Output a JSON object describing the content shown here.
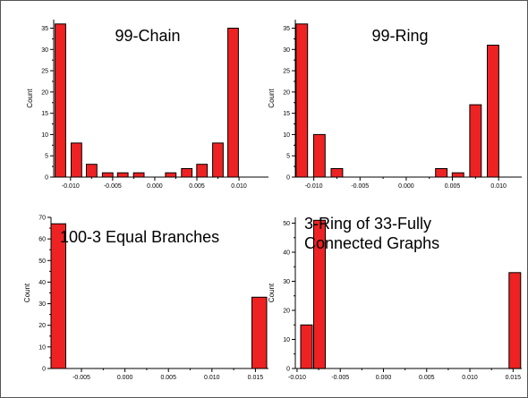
{
  "chart_data": [
    {
      "type": "bar",
      "title": "99-Chain",
      "ylabel": "Count",
      "xlim": [
        -0.012,
        0.0135
      ],
      "ylim": [
        0,
        37
      ],
      "xticks": [
        -0.01,
        -0.005,
        0.0,
        0.005,
        0.01
      ],
      "xtick_labels": [
        "-0.010",
        "-0.005",
        "0.000",
        "0.005",
        "0.010"
      ],
      "yticks": [
        0,
        5,
        10,
        15,
        20,
        25,
        30,
        35
      ],
      "ytick_labels": [
        "0",
        "5",
        "10",
        "15",
        "20",
        "25",
        "30",
        "35"
      ],
      "bar_width": 0.00125,
      "bars": [
        {
          "x": -0.0112,
          "value": 36
        },
        {
          "x": -0.0093,
          "value": 8
        },
        {
          "x": -0.0075,
          "value": 3
        },
        {
          "x": -0.0056,
          "value": 1
        },
        {
          "x": -0.0038,
          "value": 1
        },
        {
          "x": -0.0019,
          "value": 1
        },
        {
          "x": 0.0019,
          "value": 1
        },
        {
          "x": 0.0038,
          "value": 2
        },
        {
          "x": 0.0056,
          "value": 3
        },
        {
          "x": 0.0075,
          "value": 8
        },
        {
          "x": 0.0093,
          "value": 35
        }
      ]
    },
    {
      "type": "bar",
      "title": "99-Ring",
      "ylabel": "Count",
      "xlim": [
        -0.012,
        0.0125
      ],
      "ylim": [
        0,
        37
      ],
      "xticks": [
        -0.01,
        -0.005,
        0.0,
        0.005,
        0.01
      ],
      "xtick_labels": [
        "-0.010",
        "-0.005",
        "0.000",
        "0.005",
        "0.010"
      ],
      "yticks": [
        0,
        5,
        10,
        15,
        20,
        25,
        30,
        35
      ],
      "ytick_labels": [
        "0",
        "5",
        "10",
        "15",
        "20",
        "25",
        "30",
        "35"
      ],
      "bar_width": 0.00125,
      "bars": [
        {
          "x": -0.0113,
          "value": 36
        },
        {
          "x": -0.0094,
          "value": 10
        },
        {
          "x": -0.0075,
          "value": 2
        },
        {
          "x": 0.0038,
          "value": 2
        },
        {
          "x": 0.0056,
          "value": 1
        },
        {
          "x": 0.0075,
          "value": 17
        },
        {
          "x": 0.0094,
          "value": 31
        }
      ]
    },
    {
      "type": "bar",
      "title": "100-3 Equal Branches",
      "ylabel": "Count",
      "xlim": [
        -0.0085,
        0.0165
      ],
      "ylim": [
        0,
        70
      ],
      "xticks": [
        -0.005,
        0.0,
        0.005,
        0.01,
        0.015
      ],
      "xtick_labels": [
        "-0.005",
        "0.000",
        "0.005",
        "0.010",
        "0.015"
      ],
      "yticks": [
        0,
        10,
        20,
        30,
        40,
        50,
        60,
        70
      ],
      "ytick_labels": [
        "0",
        "10",
        "20",
        "30",
        "40",
        "50",
        "60",
        "70"
      ],
      "bar_width": 0.0017,
      "bars": [
        {
          "x": -0.00765,
          "value": 67
        },
        {
          "x": 0.01545,
          "value": 33
        }
      ]
    },
    {
      "type": "bar",
      "title": "3-Ring of 33-Fully Connected Graphs",
      "title_lines": [
        "3-Ring of 33-Fully",
        "Connected Graphs"
      ],
      "ylabel": "Count",
      "xlim": [
        -0.0102,
        0.016
      ],
      "ylim": [
        0,
        52
      ],
      "xticks": [
        -0.01,
        -0.005,
        0.0,
        0.005,
        0.01,
        0.015
      ],
      "xtick_labels": [
        "-0.010",
        "-0.005",
        "0.000",
        "0.005",
        "0.010",
        "0.015"
      ],
      "yticks": [
        0,
        10,
        20,
        30,
        40,
        50
      ],
      "ytick_labels": [
        "0",
        "10",
        "20",
        "30",
        "40",
        "50"
      ],
      "bar_width": 0.00135,
      "bars": [
        {
          "x": -0.0089,
          "value": 15
        },
        {
          "x": -0.0074,
          "value": 51
        },
        {
          "x": 0.0152,
          "value": 33
        }
      ]
    }
  ]
}
